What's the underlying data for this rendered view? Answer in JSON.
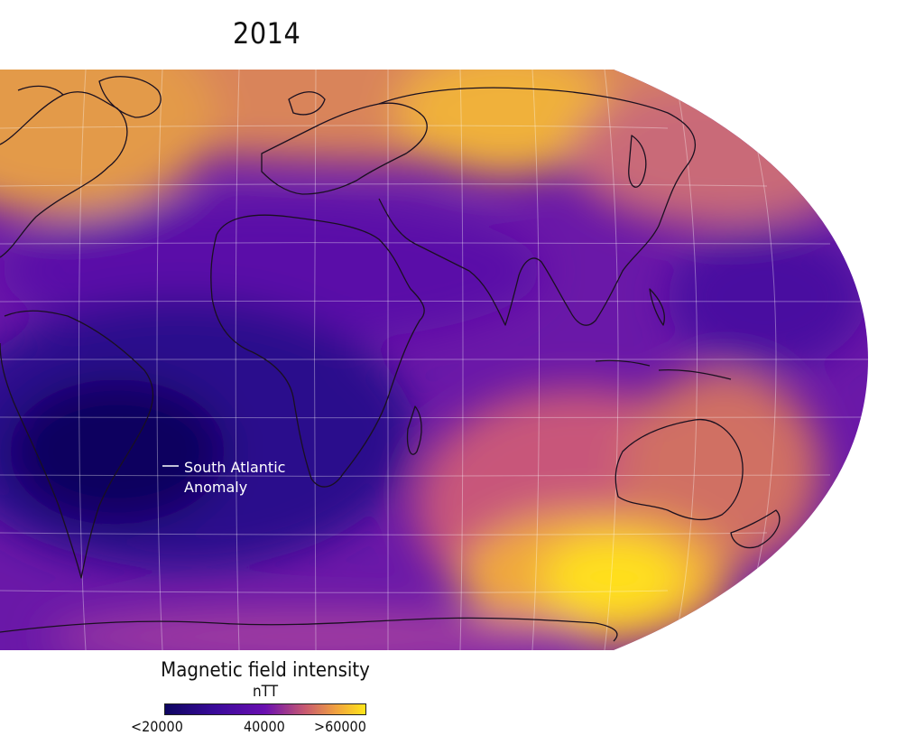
{
  "title": "2014",
  "annotation": "South Atlantic\nAnomaly",
  "legend": {
    "title": "Magnetic field intensity",
    "unit": "nTT",
    "ticks": [
      "<20000",
      "40000",
      ">60000"
    ]
  },
  "colors": {
    "low": "#0d0560",
    "mid": "#6a0fb0",
    "high": "#ffe51a",
    "coastline": "#1a1020",
    "graticule": "#ffffff"
  },
  "field_features": [
    {
      "name": "south-atlantic-anomaly",
      "level": "low"
    },
    {
      "name": "southern-high",
      "level": "high"
    },
    {
      "name": "northern-high",
      "level": "high"
    }
  ]
}
